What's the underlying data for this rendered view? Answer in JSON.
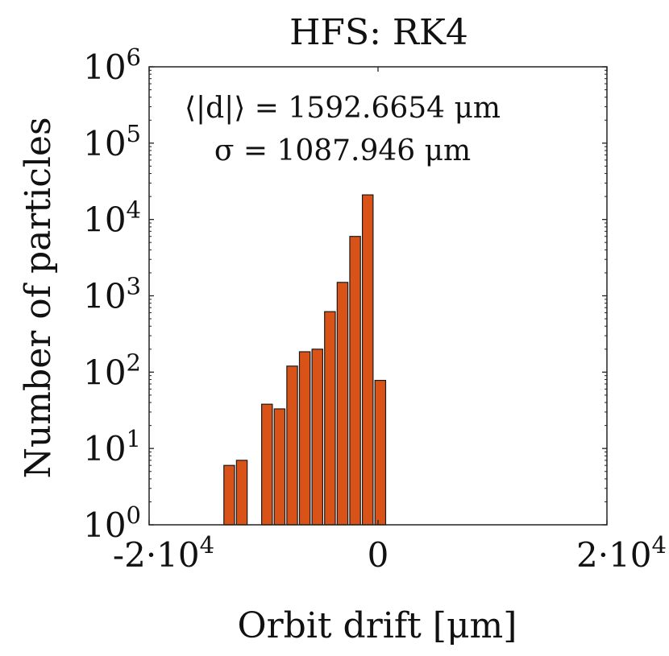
{
  "chart_data": {
    "type": "bar",
    "title": "HFS: RK4",
    "xlabel": "Orbit drift [μm]",
    "ylabel": "Number of particles",
    "yscale": "log",
    "xlim": [
      -20000,
      20000
    ],
    "ylim": [
      1,
      1000000
    ],
    "x_ticks": [
      {
        "value": -20000,
        "base": "-2·10",
        "exp": "4"
      },
      {
        "value": 0,
        "base": "0",
        "exp": ""
      },
      {
        "value": 20000,
        "base": "2·10",
        "exp": "4"
      }
    ],
    "y_ticks": [
      {
        "value": 1,
        "base": "10",
        "exp": "0"
      },
      {
        "value": 10,
        "base": "10",
        "exp": "1"
      },
      {
        "value": 100,
        "base": "10",
        "exp": "2"
      },
      {
        "value": 1000,
        "base": "10",
        "exp": "3"
      },
      {
        "value": 10000,
        "base": "10",
        "exp": "4"
      },
      {
        "value": 100000,
        "base": "10",
        "exp": "5"
      },
      {
        "value": 1000000,
        "base": "10",
        "exp": "6"
      }
    ],
    "bin_width": 1100,
    "bar_fill_fraction": 0.85,
    "bins": [
      {
        "center": -13000,
        "count": 6
      },
      {
        "center": -11900,
        "count": 7
      },
      {
        "center": -9700,
        "count": 38
      },
      {
        "center": -8600,
        "count": 33
      },
      {
        "center": -7500,
        "count": 120
      },
      {
        "center": -6400,
        "count": 185
      },
      {
        "center": -5300,
        "count": 200
      },
      {
        "center": -4200,
        "count": 620
      },
      {
        "center": -3100,
        "count": 1500
      },
      {
        "center": -2000,
        "count": 6000
      },
      {
        "center": -900,
        "count": 21000
      },
      {
        "center": 200,
        "count": 78
      }
    ],
    "bar_color": "#d95319",
    "bar_edge_color": "#1a1a1a",
    "annotations": [
      {
        "text": "⟨|d|⟩ = 1592.6654 μm"
      },
      {
        "text": "σ = 1087.946 μm"
      }
    ]
  }
}
